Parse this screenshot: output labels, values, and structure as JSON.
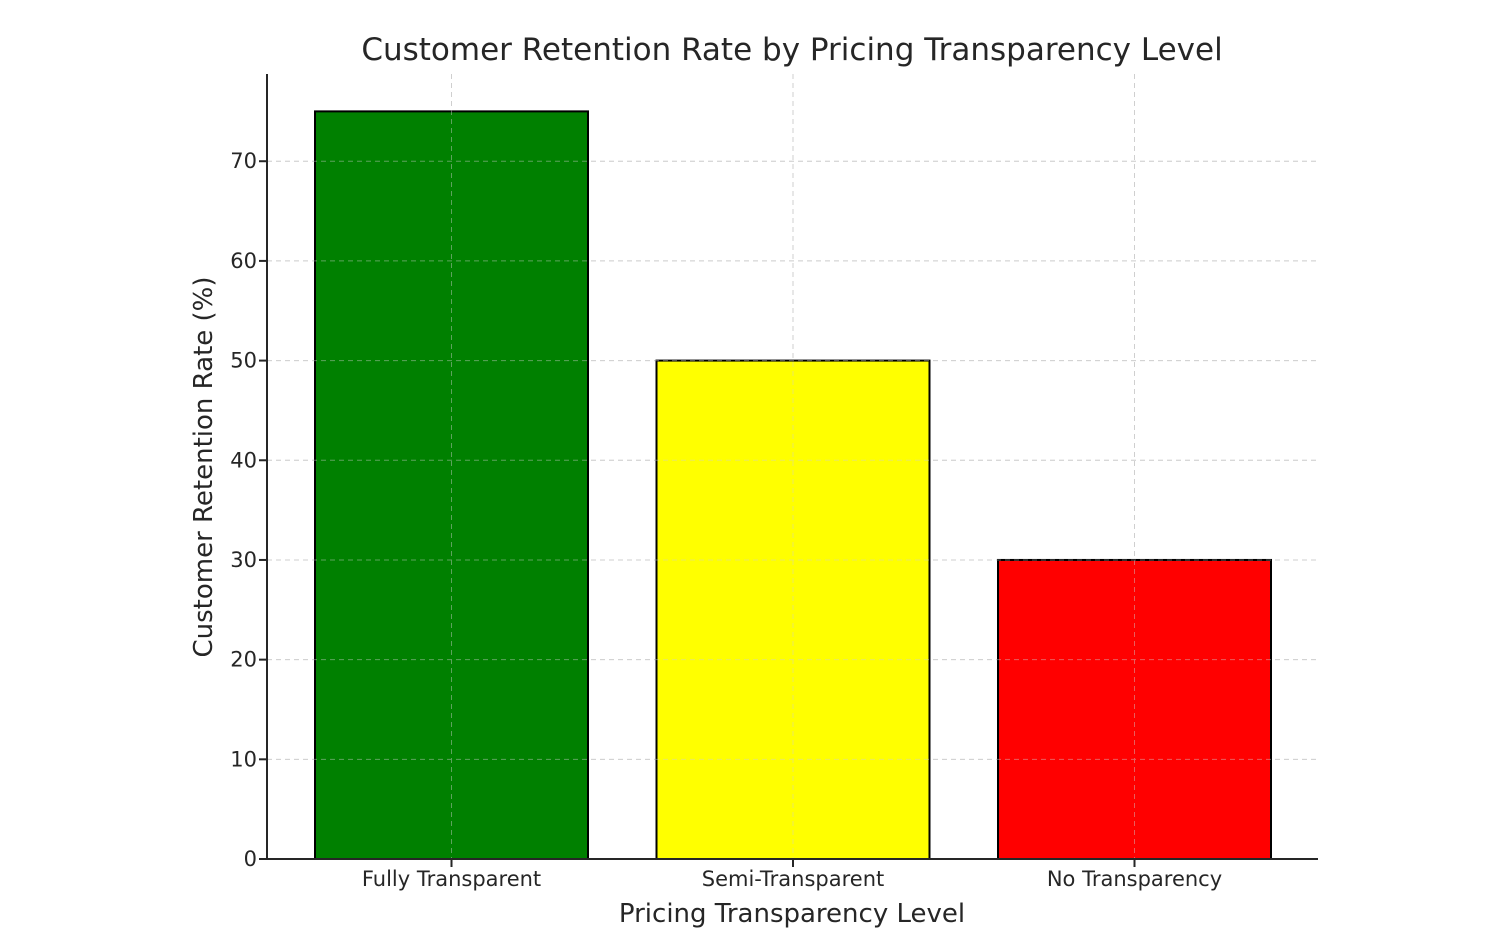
{
  "chart_data": {
    "type": "bar",
    "title": "Customer Retention Rate by Pricing Transparency Level",
    "xlabel": "Pricing Transparency Level",
    "ylabel": "Customer Retention Rate (%)",
    "categories": [
      "Fully Transparent",
      "Semi-Transparent",
      "No Transparency"
    ],
    "values": [
      75,
      50,
      30
    ],
    "colors": [
      "#008000",
      "#ffff00",
      "#ff0000"
    ],
    "edge_color": "#000000",
    "ylim": [
      0,
      78.75
    ],
    "yticks": [
      0,
      10,
      20,
      30,
      40,
      50,
      60,
      70
    ],
    "grid": true,
    "grid_style": "dashed",
    "legend": "none"
  }
}
